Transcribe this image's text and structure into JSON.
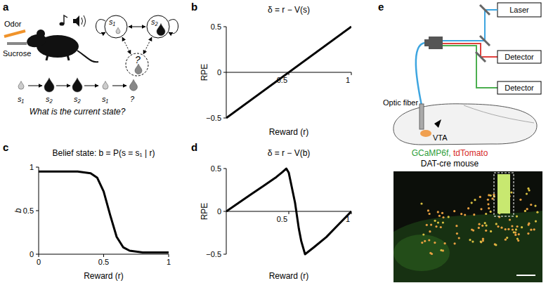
{
  "panel_a": {
    "label": "a",
    "odor": "Odor",
    "sucrose": "Sucrose",
    "states": [
      "s₁",
      "s₂",
      "?"
    ],
    "sequence": [
      "s₁",
      "s₂",
      "s₂",
      "s₁",
      "?"
    ],
    "question": "What is the current state?"
  },
  "chart_data": [
    {
      "panel": "b",
      "type": "line",
      "title": "δ = r − V(s)",
      "x_label": "Reward (r)",
      "y_label": "RPE",
      "xlim": [
        0,
        1
      ],
      "ylim": [
        -0.5,
        0.5
      ],
      "xticks": [
        0.5,
        1
      ],
      "yticks": [
        {
          "value": -0.5,
          "label": "−0.5"
        },
        0,
        0.5
      ],
      "x": [
        0,
        1
      ],
      "values": [
        -0.5,
        0.5
      ],
      "color": "#000000"
    },
    {
      "panel": "c",
      "type": "line",
      "title": "Belief state: b = P(s = s₁ | r)",
      "x_label": "Reward (r)",
      "y_label": "b",
      "xlim": [
        0,
        1
      ],
      "ylim": [
        0,
        1
      ],
      "xticks": [
        0,
        0.5,
        1
      ],
      "yticks": [
        0,
        0.5,
        1
      ],
      "x": [
        0,
        0.05,
        0.1,
        0.2,
        0.3,
        0.4,
        0.45,
        0.5,
        0.55,
        0.6,
        0.65,
        0.7,
        0.8,
        0.9,
        1
      ],
      "values": [
        0.95,
        0.95,
        0.95,
        0.95,
        0.95,
        0.93,
        0.88,
        0.72,
        0.45,
        0.2,
        0.08,
        0.04,
        0.02,
        0.02,
        0.02
      ],
      "color": "#000000"
    },
    {
      "panel": "d",
      "type": "line",
      "title": "δ = r − V(b)",
      "x_label": "Reward (r)",
      "y_label": "RPE",
      "xlim": [
        0,
        1
      ],
      "ylim": [
        -0.5,
        0.5
      ],
      "xticks": [
        0.5,
        1
      ],
      "yticks": [
        {
          "value": -0.5,
          "label": "−0.5"
        },
        0,
        0.5
      ],
      "x": [
        0,
        0.1,
        0.2,
        0.3,
        0.4,
        0.45,
        0.48,
        0.5,
        0.55,
        0.58,
        0.6,
        0.63,
        0.7,
        0.8,
        0.9,
        1
      ],
      "values": [
        0,
        0.1,
        0.2,
        0.3,
        0.4,
        0.46,
        0.5,
        0.45,
        0.1,
        -0.2,
        -0.35,
        -0.5,
        -0.42,
        -0.3,
        -0.15,
        0
      ],
      "color": "#000000"
    }
  ],
  "panel_e": {
    "label": "e",
    "laser": "Laser",
    "detectors": [
      "Detector",
      "Detector"
    ],
    "optic_fiber": "Optic fiber",
    "region": "VTA",
    "indicators": [
      "GCaMP6f,",
      "tdTomato"
    ],
    "mouse": "DAT-cre mouse"
  }
}
